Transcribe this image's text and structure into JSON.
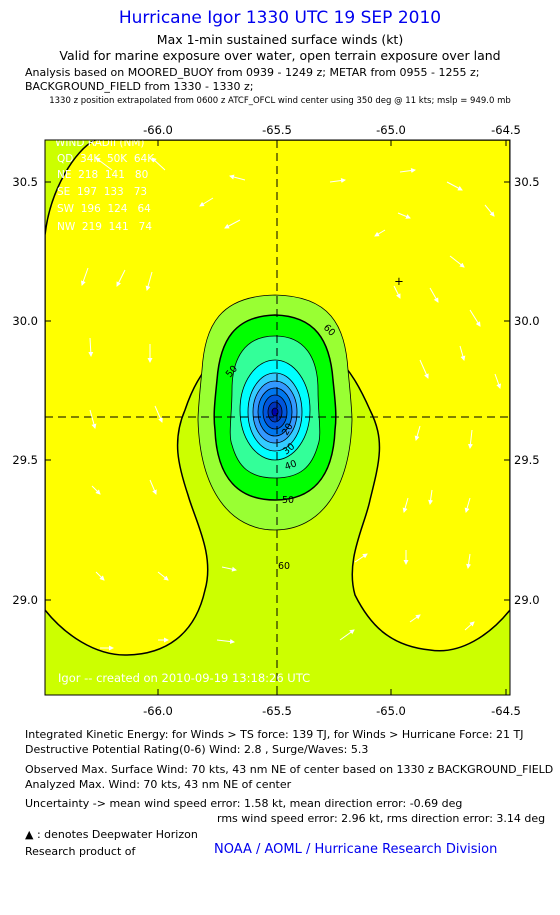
{
  "header": {
    "title": "Hurricane Igor 1330 UTC 19 SEP 2010",
    "subtitle1": "Max 1-min sustained surface winds (kt)",
    "subtitle2": "Valid for marine exposure over water, open terrain exposure over land",
    "analysis1": "Analysis based on MOORED_BUOY from 0939 - 1249 z; METAR from 0955 - 1255 z;",
    "analysis2": "BACKGROUND_FIELD from 1330 - 1330 z;",
    "position_note": "1330 z position extrapolated from 0600 z ATCF_OFCL wind center using 350 deg @ 11 kts; mslp = 949.0 mb"
  },
  "wind_radii": {
    "title": "WIND RADII (NM)",
    "header": "QD  34K  50K  64K",
    "rows": [
      "NE  218  141   80",
      "SE  197  133   73",
      "SW  196  124   64",
      "NW  219  141   74"
    ]
  },
  "credit": "Igor -- created on 2010-09-19 13:18:26 UTC",
  "marker": "+",
  "colors": {
    "title": "#0000ee",
    "yellow": "#ffff00",
    "yellow_green": "#ccff00",
    "light_green": "#99ff33",
    "green": "#00ff00",
    "aqua_green": "#33ff99",
    "cyan": "#00ffff",
    "blue": "#0066ff",
    "dark_blue": "#0000aa"
  },
  "chart_data": {
    "type": "contour",
    "x_ticks": [
      "-66.0",
      "-65.5",
      "-65.0",
      "-64.5"
    ],
    "y_ticks": [
      "30.5",
      "30.0",
      "29.5",
      "29.0"
    ],
    "xlim": [
      -66.4,
      -64.5
    ],
    "ylim": [
      28.65,
      30.65
    ],
    "grid": false,
    "center": {
      "lon": -65.5,
      "lat": 29.65
    },
    "contour_labels": [
      "60",
      "50",
      "40",
      "30",
      "20",
      "50",
      "60"
    ],
    "contour_levels_kt": [
      60,
      50,
      40,
      30,
      20
    ]
  },
  "footer": {
    "ike": "Integrated Kinetic Energy:  for Winds > TS force: 139 TJ,  for Winds > Hurricane Force: 21 TJ",
    "dpr": "Destructive Potential Rating(0-6)   Wind: 2.8 , Surge/Waves: 5.3",
    "obs": "Observed Max. Surface Wind: 70 kts, 43 nm NE of center based on 1330 z BACKGROUND_FIELD",
    "analyzed": "Analyzed Max. Wind: 70 kts, 43 nm NE of center",
    "uncert1": "Uncertainty -> mean wind speed error: 1.58 kt,   mean direction error:  -0.69 deg",
    "uncert2": "rms wind speed error: 2.96 kt,    rms direction error: 3.14 deg",
    "legend_note": "▲ : denotes Deepwater Horizon",
    "research": "Research product of",
    "org": "NOAA / AOML / Hurricane Research Division"
  }
}
